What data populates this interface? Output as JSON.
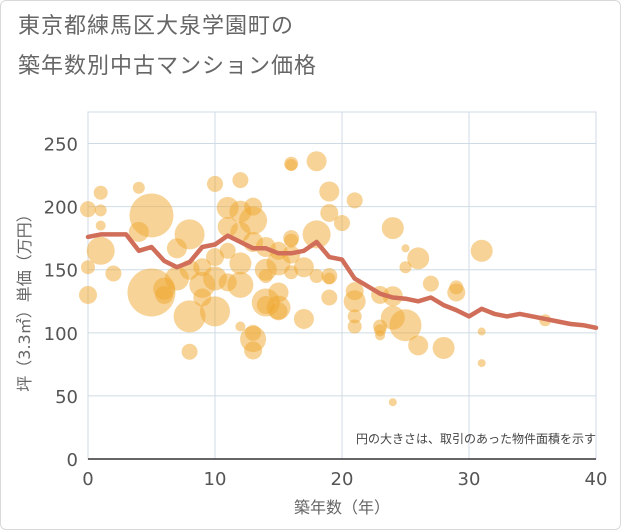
{
  "title_line1": "東京都練馬区大泉学園町の",
  "title_line2": "築年数別中古マンション価格",
  "chart_data": {
    "type": "scatter",
    "title": "東京都練馬区大泉学園町の築年数別中古マンション価格",
    "xlabel": "築年数（年）",
    "ylabel": "坪（3.3㎡）単価（万円）",
    "xlim": [
      0,
      40
    ],
    "ylim": [
      0,
      275
    ],
    "xticks": [
      0,
      10,
      20,
      30,
      40
    ],
    "yticks": [
      0,
      50,
      100,
      150,
      200,
      250
    ],
    "grid": true,
    "annotation": "円の大きさは、取引のあった物件面積を示す",
    "colors": {
      "bubble": "#f0a830",
      "line": "#d06e5a",
      "grid": "#cfdbe4",
      "text": "#666666"
    },
    "bubbles": [
      {
        "x": 0,
        "y": 198,
        "size": 8
      },
      {
        "x": 0,
        "y": 152,
        "size": 7
      },
      {
        "x": 0,
        "y": 130,
        "size": 9
      },
      {
        "x": 1,
        "y": 211,
        "size": 7
      },
      {
        "x": 1,
        "y": 197,
        "size": 6
      },
      {
        "x": 1,
        "y": 185,
        "size": 5
      },
      {
        "x": 1,
        "y": 165,
        "size": 14
      },
      {
        "x": 2,
        "y": 147,
        "size": 8
      },
      {
        "x": 4,
        "y": 215,
        "size": 6
      },
      {
        "x": 4,
        "y": 180,
        "size": 10
      },
      {
        "x": 5,
        "y": 193,
        "size": 22
      },
      {
        "x": 5,
        "y": 132,
        "size": 24
      },
      {
        "x": 6,
        "y": 135,
        "size": 11
      },
      {
        "x": 6,
        "y": 130,
        "size": 9
      },
      {
        "x": 7,
        "y": 167,
        "size": 10
      },
      {
        "x": 7,
        "y": 143,
        "size": 12
      },
      {
        "x": 8,
        "y": 178,
        "size": 15
      },
      {
        "x": 8,
        "y": 150,
        "size": 10
      },
      {
        "x": 8,
        "y": 113,
        "size": 16
      },
      {
        "x": 8,
        "y": 85,
        "size": 8
      },
      {
        "x": 9,
        "y": 152,
        "size": 9
      },
      {
        "x": 9,
        "y": 138,
        "size": 13
      },
      {
        "x": 9,
        "y": 128,
        "size": 9
      },
      {
        "x": 10,
        "y": 218,
        "size": 8
      },
      {
        "x": 10,
        "y": 160,
        "size": 9
      },
      {
        "x": 10,
        "y": 143,
        "size": 12
      },
      {
        "x": 10,
        "y": 117,
        "size": 15
      },
      {
        "x": 11,
        "y": 199,
        "size": 11
      },
      {
        "x": 11,
        "y": 184,
        "size": 10
      },
      {
        "x": 11,
        "y": 165,
        "size": 8
      },
      {
        "x": 11,
        "y": 140,
        "size": 9
      },
      {
        "x": 12,
        "y": 221,
        "size": 8
      },
      {
        "x": 12,
        "y": 196,
        "size": 11
      },
      {
        "x": 12,
        "y": 180,
        "size": 10
      },
      {
        "x": 12,
        "y": 155,
        "size": 11
      },
      {
        "x": 12,
        "y": 138,
        "size": 13
      },
      {
        "x": 12,
        "y": 105,
        "size": 5
      },
      {
        "x": 13,
        "y": 200,
        "size": 9
      },
      {
        "x": 13,
        "y": 189,
        "size": 14
      },
      {
        "x": 13,
        "y": 172,
        "size": 10
      },
      {
        "x": 13,
        "y": 100,
        "size": 8
      },
      {
        "x": 13,
        "y": 95,
        "size": 13
      },
      {
        "x": 13,
        "y": 86,
        "size": 9
      },
      {
        "x": 14,
        "y": 168,
        "size": 10
      },
      {
        "x": 14,
        "y": 150,
        "size": 11
      },
      {
        "x": 14,
        "y": 145,
        "size": 7
      },
      {
        "x": 14,
        "y": 124,
        "size": 14
      },
      {
        "x": 14,
        "y": 122,
        "size": 9
      },
      {
        "x": 15,
        "y": 165,
        "size": 9
      },
      {
        "x": 15,
        "y": 155,
        "size": 12
      },
      {
        "x": 15,
        "y": 132,
        "size": 10
      },
      {
        "x": 15,
        "y": 120,
        "size": 12
      },
      {
        "x": 15,
        "y": 117,
        "size": 9
      },
      {
        "x": 16,
        "y": 234,
        "size": 7
      },
      {
        "x": 16,
        "y": 233,
        "size": 6
      },
      {
        "x": 16,
        "y": 175,
        "size": 8
      },
      {
        "x": 16,
        "y": 173,
        "size": 7
      },
      {
        "x": 16,
        "y": 162,
        "size": 9
      },
      {
        "x": 16,
        "y": 148,
        "size": 7
      },
      {
        "x": 17,
        "y": 152,
        "size": 10
      },
      {
        "x": 17,
        "y": 111,
        "size": 10
      },
      {
        "x": 18,
        "y": 236,
        "size": 10
      },
      {
        "x": 18,
        "y": 178,
        "size": 14
      },
      {
        "x": 18,
        "y": 145,
        "size": 7
      },
      {
        "x": 19,
        "y": 212,
        "size": 10
      },
      {
        "x": 19,
        "y": 195,
        "size": 9
      },
      {
        "x": 19,
        "y": 145,
        "size": 8
      },
      {
        "x": 19,
        "y": 143,
        "size": 6
      },
      {
        "x": 19,
        "y": 128,
        "size": 8
      },
      {
        "x": 20,
        "y": 187,
        "size": 8
      },
      {
        "x": 21,
        "y": 205,
        "size": 8
      },
      {
        "x": 21,
        "y": 133,
        "size": 9
      },
      {
        "x": 21,
        "y": 125,
        "size": 11
      },
      {
        "x": 21,
        "y": 113,
        "size": 7
      },
      {
        "x": 21,
        "y": 105,
        "size": 7
      },
      {
        "x": 23,
        "y": 130,
        "size": 9
      },
      {
        "x": 23,
        "y": 105,
        "size": 7
      },
      {
        "x": 23,
        "y": 102,
        "size": 6
      },
      {
        "x": 23,
        "y": 98,
        "size": 5
      },
      {
        "x": 24,
        "y": 183,
        "size": 11
      },
      {
        "x": 24,
        "y": 129,
        "size": 10
      },
      {
        "x": 24,
        "y": 112,
        "size": 12
      },
      {
        "x": 24,
        "y": 45,
        "size": 4
      },
      {
        "x": 25,
        "y": 167,
        "size": 4
      },
      {
        "x": 25,
        "y": 152,
        "size": 6
      },
      {
        "x": 25,
        "y": 106,
        "size": 16
      },
      {
        "x": 26,
        "y": 159,
        "size": 11
      },
      {
        "x": 26,
        "y": 90,
        "size": 10
      },
      {
        "x": 27,
        "y": 139,
        "size": 8
      },
      {
        "x": 28,
        "y": 88,
        "size": 11
      },
      {
        "x": 29,
        "y": 136,
        "size": 7
      },
      {
        "x": 29,
        "y": 132,
        "size": 9
      },
      {
        "x": 31,
        "y": 165,
        "size": 11
      },
      {
        "x": 31,
        "y": 101,
        "size": 4
      },
      {
        "x": 31,
        "y": 76,
        "size": 4
      },
      {
        "x": 36,
        "y": 110,
        "size": 6
      }
    ],
    "trend_line": {
      "x": [
        0,
        1,
        2,
        3,
        4,
        5,
        6,
        7,
        8,
        9,
        10,
        11,
        12,
        13,
        14,
        15,
        16,
        17,
        18,
        19,
        20,
        21,
        22,
        23,
        24,
        25,
        26,
        27,
        28,
        29,
        30,
        31,
        32,
        33,
        34,
        35,
        36,
        37,
        38,
        39,
        40
      ],
      "y": [
        176,
        178,
        178,
        178,
        165,
        168,
        157,
        152,
        156,
        168,
        170,
        177,
        172,
        167,
        167,
        163,
        163,
        165,
        172,
        160,
        158,
        143,
        137,
        131,
        128,
        127,
        125,
        128,
        122,
        118,
        113,
        119,
        115,
        113,
        115,
        113,
        111,
        109,
        107,
        106,
        104
      ]
    }
  }
}
